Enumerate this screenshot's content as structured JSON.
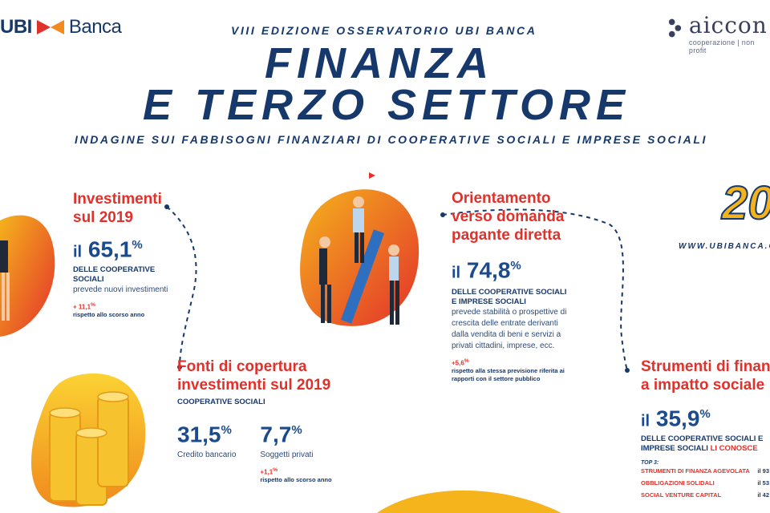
{
  "header": {
    "ubi_brand": "UBI",
    "ubi_banca": "Banca",
    "aiccon_word": "aiccon",
    "aiccon_sub": "cooperazione | non profit",
    "edition": "VIII EDIZIONE OSSERVATORIO UBI BANCA",
    "title_line1": "FINANZA",
    "title_line2": "E TERZO SETTORE",
    "subtitle": "INDAGINE SUI FABBISOGNI FINANZIARI  DI COOPERATIVE SOCIALI E IMPRESE SOCIALI"
  },
  "side": {
    "year_partial": "20",
    "url": "WWW.UBIBANCA.CO"
  },
  "investimenti": {
    "title_l1": "Investimenti",
    "title_l2": "sul 2019",
    "il": "il",
    "value": "65,1",
    "pct": "%",
    "cap": "DELLE COOPERATIVE SOCIALI",
    "desc": "prevede nuovi investimenti",
    "delta": "+ 11,1",
    "delta_pct": "%",
    "delta_note": "rispetto allo scorso anno"
  },
  "fonti": {
    "title_l1": "Fonti di copertura",
    "title_l2": "investimenti sul 2019",
    "cap": "COOPERATIVE SOCIALI",
    "v1": "31,5",
    "v1_pct": "%",
    "v1_label": "Credito bancario",
    "v2": "7,7",
    "v2_pct": "%",
    "v2_label": "Soggetti privati",
    "delta": "+1,1",
    "delta_pct": "%",
    "delta_note": "rispetto allo scorso anno"
  },
  "orientamento": {
    "title_l1": "Orientamento",
    "title_l2": "verso domanda",
    "title_l3": "pagante diretta",
    "il": "il",
    "value": "74,8",
    "pct": "%",
    "cap_l1": "DELLE COOPERATIVE SOCIALI",
    "cap_l2": "E IMPRESE SOCIALI",
    "desc_l1": "prevede stabilità o prospettive di",
    "desc_l2": "crescita delle entrate derivanti",
    "desc_l3": "dalla vendita di beni e servizi a",
    "desc_l4": "privati cittadini, imprese, ecc.",
    "delta": "+5,6",
    "delta_pct": "%",
    "note_l1": "rispetto alla stessa previsione riferita ai",
    "note_l2": "rapporti con il settore pubblico"
  },
  "strumenti": {
    "title_l1": "Strumenti di finan",
    "title_l2": "a impatto sociale",
    "il": "il",
    "value": "35,9",
    "pct": "%",
    "cap_l1": "DELLE COOPERATIVE SOCIALI E",
    "cap_l2": "IMPRESE SOCIALI",
    "cap_red": "LI CONOSCE",
    "top3": "TOP 3:",
    "items": [
      {
        "label": "STRUMENTI DI FINANZA AGEVOLATA",
        "prefix": "il",
        "value": "93"
      },
      {
        "label": "OBBLIGAZIONI SOLIDALI",
        "prefix": "il",
        "value": "53"
      },
      {
        "label": "SOCIAL VENTURE CAPITAL",
        "prefix": "il",
        "value": "42"
      }
    ]
  },
  "colors": {
    "navy": "#17386b",
    "red": "#e0312b",
    "orange": "#f28a1e",
    "yellow": "#f5b31c"
  }
}
